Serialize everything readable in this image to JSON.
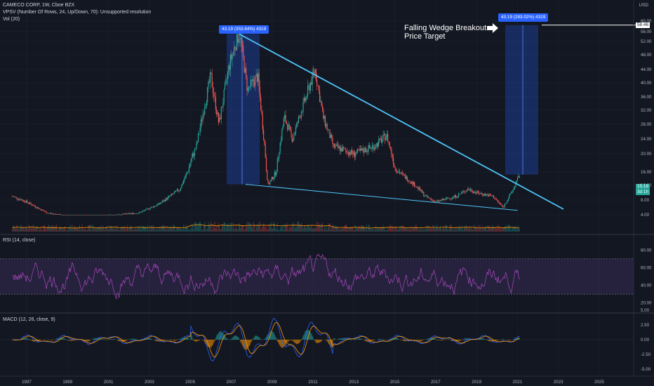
{
  "header": {
    "symbol_line": "CAMECO CORP, 1W, Cboe BZX",
    "vpsv_line": "VPSV (Number Of Rows, 24, Up/Down, 70): Unsupported resolution",
    "vol_line": "Vol (20)"
  },
  "currency": "USD",
  "price_axis": {
    "ticks": [
      "60.00",
      "56.00",
      "52.00",
      "48.00",
      "44.00",
      "40.00",
      "36.00",
      "32.00",
      "28.00",
      "24.00",
      "20.00",
      "16.00",
      "12.00",
      "8.00",
      "4.00"
    ],
    "values": [
      60,
      56,
      52,
      48,
      44,
      40,
      36,
      32,
      28,
      24,
      20,
      16,
      12,
      8,
      4
    ]
  },
  "price_tags": {
    "target": "58.46",
    "last": "15.18",
    "countdown": "3d 1h"
  },
  "badges": {
    "left": "43.19 (353.64%) 4319",
    "right": "43.19 (283.02%) 4319"
  },
  "annotation": {
    "line1": "Falling Wedge Breakout",
    "line2": "Price Target"
  },
  "rsi_panel": {
    "label": "RSI (14, close)",
    "ticks": [
      "80.00",
      "60.00",
      "40.00",
      "20.00"
    ],
    "values": [
      80,
      60,
      40,
      20
    ],
    "upper_band": 70,
    "lower_band": 30
  },
  "macd_panel": {
    "label": "MACD (12, 26, close, 9)",
    "ticks": [
      "5.00",
      "2.50",
      "0.00",
      "-2.50",
      "-5.00"
    ],
    "values": [
      5,
      2.5,
      0,
      -2.5,
      -5
    ]
  },
  "time_axis": {
    "labels": [
      "1997",
      "1999",
      "2001",
      "2003",
      "2005",
      "2007",
      "2009",
      "2011",
      "2013",
      "2015",
      "2017",
      "2019",
      "2021",
      "2023",
      "2025"
    ]
  },
  "colors": {
    "background": "#131722",
    "up": "#26a69a",
    "down": "#ef5350",
    "wedge_line": "#4fc3f7",
    "rsi_line": "#9c27b0",
    "macd_line": "#2962ff",
    "signal_line": "#ff9800",
    "badge": "#2962ff",
    "last_price": "#26a69a"
  }
}
